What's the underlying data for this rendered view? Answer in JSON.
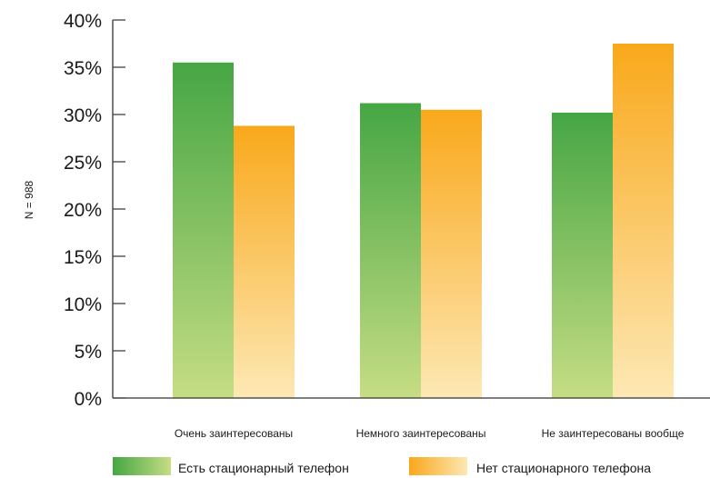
{
  "colors": {
    "green_top": "#46a644",
    "green_bottom": "#c6dd84",
    "orange_top": "#f9a81b",
    "orange_bottom": "#fde8b4",
    "axis": "#333333"
  },
  "chart_data": {
    "type": "bar",
    "categories": [
      "Очень заинтересованы",
      "Немного заинтересованы",
      "Не заинтересованы вообще"
    ],
    "series": [
      {
        "name": "Есть стационарный телефон",
        "values": [
          35.5,
          31.2,
          30.2
        ]
      },
      {
        "name": "Нет стационарного телефона",
        "values": [
          28.8,
          30.5,
          37.5
        ]
      }
    ],
    "title": "",
    "xlabel": "",
    "ylabel": "N = 988",
    "ylim": [
      0,
      40
    ],
    "yticks": [
      "0%",
      "5%",
      "10%",
      "15%",
      "20%",
      "25%",
      "30%",
      "35%",
      "40%"
    ],
    "grid": false,
    "legend_position": "bottom"
  }
}
